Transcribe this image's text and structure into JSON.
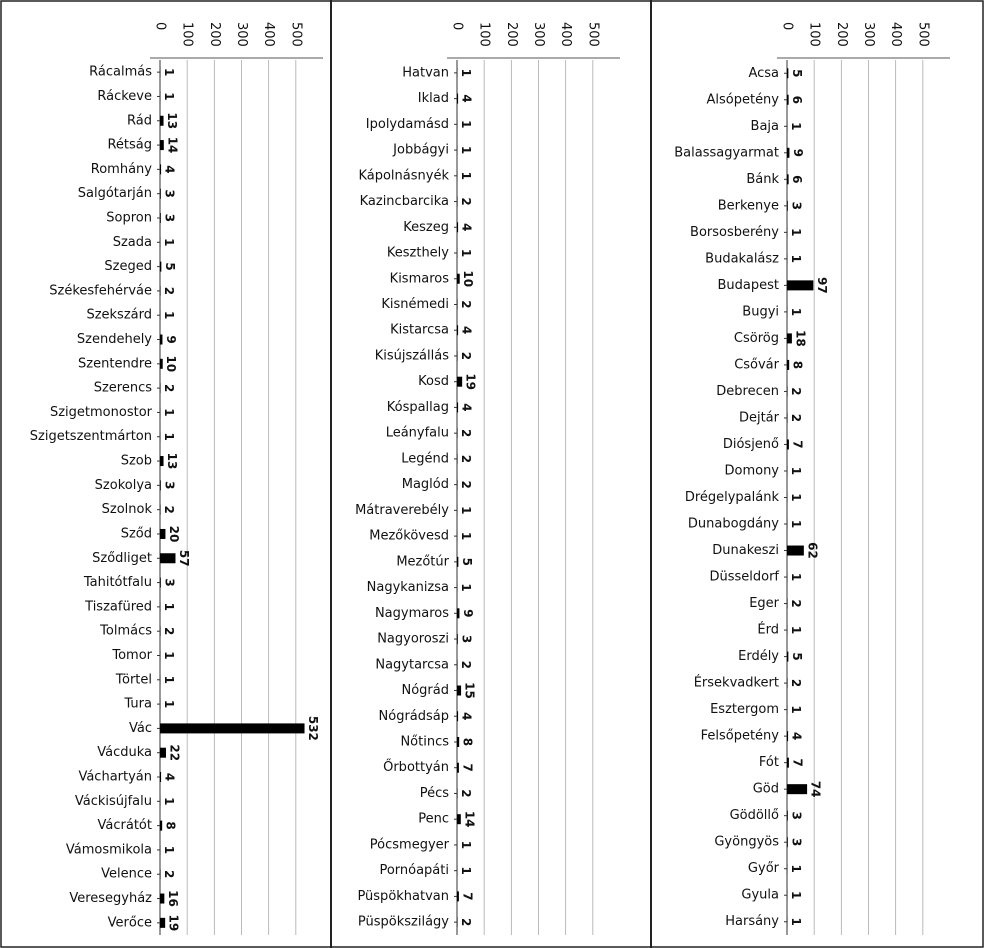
{
  "chart_data": [
    {
      "type": "bar",
      "orientation": "horizontal",
      "color": "#000000",
      "grid": true,
      "xlim": [
        0,
        600
      ],
      "xticks": [
        0,
        100,
        200,
        300,
        400,
        500
      ],
      "categories": [
        "Rácalmás",
        "Ráckeve",
        "Rád",
        "Rétság",
        "Romhány",
        "Salgótarján",
        "Sopron",
        "Szada",
        "Szeged",
        "Székesfehérváe",
        "Szekszárd",
        "Szendehely",
        "Szentendre",
        "Szerencs",
        "Szigetmonostor",
        "Szigetszentmárton",
        "Szob",
        "Szokolya",
        "Szolnok",
        "Sződ",
        "Sződliget",
        "Tahitótfalu",
        "Tiszafüred",
        "Tolmács",
        "Tomor",
        "Törtel",
        "Tura",
        "Vác",
        "Vácduka",
        "Váchartyán",
        "Váckisújfalu",
        "Vácrátót",
        "Vámosmikola",
        "Velence",
        "Veresegyház",
        "Verőce"
      ],
      "values": [
        1,
        1,
        13,
        14,
        4,
        3,
        3,
        1,
        5,
        2,
        1,
        9,
        10,
        2,
        1,
        1,
        13,
        3,
        2,
        20,
        57,
        3,
        1,
        2,
        1,
        1,
        1,
        532,
        22,
        4,
        1,
        8,
        1,
        2,
        16,
        19
      ]
    },
    {
      "type": "bar",
      "orientation": "horizontal",
      "color": "#000000",
      "grid": true,
      "xlim": [
        0,
        600
      ],
      "xticks": [
        0,
        100,
        200,
        300,
        400,
        500
      ],
      "categories": [
        "Hatvan",
        "Iklad",
        "Ipolydamásd",
        "Jobbágyi",
        "Kápolnásnyék",
        "Kazincbarcika",
        "Keszeg",
        "Keszthely",
        "Kismaros",
        "Kisnémedi",
        "Kistarcsa",
        "Kisújszállás",
        "Kosd",
        "Kóspallag",
        "Leányfalu",
        "Legénd",
        "Maglód",
        "Mátraverebély",
        "Mezőkövesd",
        "Mezőtúr",
        "Nagykanizsa",
        "Nagymaros",
        "Nagyoroszi",
        "Nagytarcsa",
        "Nógrád",
        "Nógrádsáp",
        "Nőtincs",
        "Őrbottyán",
        "Pécs",
        "Penc",
        "Pócsmegyer",
        "Pornóapáti",
        "Püspökhatvan",
        "Püspökszilágy"
      ],
      "values": [
        1,
        4,
        1,
        1,
        1,
        2,
        4,
        1,
        10,
        2,
        4,
        2,
        19,
        4,
        2,
        2,
        2,
        1,
        1,
        5,
        1,
        9,
        3,
        2,
        15,
        4,
        8,
        7,
        2,
        14,
        1,
        1,
        7,
        2
      ]
    },
    {
      "type": "bar",
      "orientation": "horizontal",
      "color": "#000000",
      "grid": true,
      "xlim": [
        0,
        600
      ],
      "xticks": [
        0,
        100,
        200,
        300,
        400,
        500
      ],
      "categories": [
        "Acsa",
        "Alsópetény",
        "Baja",
        "Balassagyarmat",
        "Bánk",
        "Berkenye",
        "Borsosberény",
        "Budakalász",
        "Budapest",
        "Bugyi",
        "Csörög",
        "Csővár",
        "Debrecen",
        "Dejtár",
        "Diósjenő",
        "Domony",
        "Drégelypalánk",
        "Dunabogdány",
        "Dunakeszi",
        "Düsseldorf",
        "Eger",
        "Érd",
        "Erdély",
        "Érsekvadkert",
        "Esztergom",
        "Felsőpetény",
        "Fót",
        "Göd",
        "Gödöllő",
        "Gyöngyös",
        "Győr",
        "Gyula",
        "Harsány"
      ],
      "values": [
        5,
        6,
        1,
        9,
        6,
        3,
        1,
        1,
        97,
        1,
        18,
        8,
        2,
        2,
        7,
        1,
        1,
        1,
        62,
        1,
        2,
        1,
        5,
        2,
        1,
        4,
        7,
        74,
        3,
        3,
        1,
        1,
        1
      ]
    }
  ]
}
